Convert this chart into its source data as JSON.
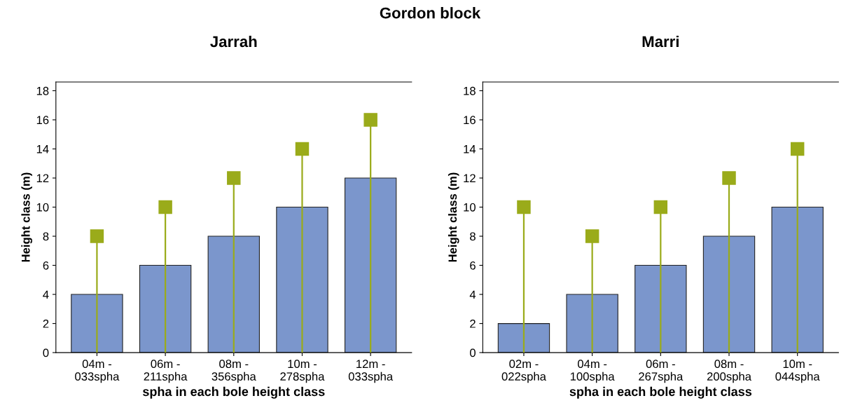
{
  "chart_data": [
    {
      "type": "bar",
      "title": "Jarrah",
      "annotations": [
        "Gordon block"
      ],
      "xlabel": "spha in each bole height class",
      "ylabel": "Height class (m)",
      "categories": [
        "04m -\n033spha",
        "06m -\n211spha",
        "08m -\n356spha",
        "10m -\n278spha",
        "12m -\n033spha"
      ],
      "series": [
        {
          "color": "#7b96cc",
          "values": [
            4,
            6,
            8,
            10,
            12
          ]
        },
        {
          "type": "lollipop",
          "color": "#9aab1a",
          "values": [
            8,
            10,
            12,
            14,
            16
          ]
        }
      ],
      "ylim": [
        0,
        18.6
      ],
      "yticks": [
        0,
        2,
        4,
        6,
        8,
        10,
        12,
        14,
        16,
        18
      ],
      "legend": false,
      "marker": "square"
    },
    {
      "type": "bar",
      "title": "Marri",
      "xlabel": "spha in each bole height class",
      "ylabel": "Height class (m)",
      "categories": [
        "02m -\n022spha",
        "04m -\n100spha",
        "06m -\n267spha",
        "08m -\n200spha",
        "10m -\n044spha"
      ],
      "series": [
        {
          "color": "#7b96cc",
          "values": [
            2,
            4,
            6,
            8,
            10
          ]
        },
        {
          "type": "lollipop",
          "color": "#9aab1a",
          "values": [
            10,
            8,
            10,
            12,
            14
          ]
        }
      ],
      "ylim": [
        0,
        18.6
      ],
      "yticks": [
        0,
        2,
        4,
        6,
        8,
        10,
        12,
        14,
        16,
        18
      ],
      "legend": false,
      "marker": "square"
    }
  ]
}
